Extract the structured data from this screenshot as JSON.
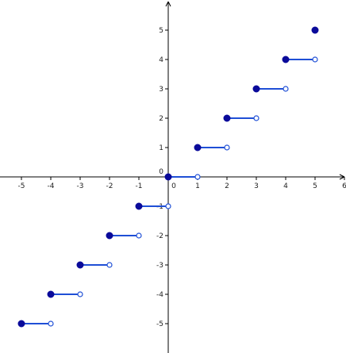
{
  "chart_data": {
    "type": "step",
    "title": "",
    "xlabel": "",
    "ylabel": "",
    "xlim": [
      -5.5,
      6
    ],
    "ylim": [
      -5.9,
      5.9
    ],
    "grid": false,
    "x_ticks": [
      -5,
      -4,
      -3,
      -2,
      -1,
      1,
      2,
      3,
      4,
      5,
      6
    ],
    "y_ticks": [
      -5,
      -4,
      -3,
      -2,
      -1,
      1,
      2,
      3,
      4,
      5
    ],
    "x_tick_labels": [
      "-5",
      "-4",
      "-3",
      "-2",
      "-1",
      "1",
      "2",
      "3",
      "4",
      "5",
      "6"
    ],
    "y_tick_labels": [
      "-5",
      "-4",
      "-3",
      "-2",
      "-1",
      "1",
      "2",
      "3",
      "4",
      "5"
    ],
    "origin_label_x": "0",
    "origin_label_y": "0",
    "segments": [
      {
        "x_start": -5,
        "x_end": -4,
        "y": -5,
        "start_closed": true,
        "end_closed": false
      },
      {
        "x_start": -4,
        "x_end": -3,
        "y": -4,
        "start_closed": true,
        "end_closed": false
      },
      {
        "x_start": -3,
        "x_end": -2,
        "y": -3,
        "start_closed": true,
        "end_closed": false
      },
      {
        "x_start": -2,
        "x_end": -1,
        "y": -2,
        "start_closed": true,
        "end_closed": false
      },
      {
        "x_start": -1,
        "x_end": 0,
        "y": -1,
        "start_closed": true,
        "end_closed": false
      },
      {
        "x_start": 0,
        "x_end": 1,
        "y": 0,
        "start_closed": true,
        "end_closed": false
      },
      {
        "x_start": 1,
        "x_end": 2,
        "y": 1,
        "start_closed": true,
        "end_closed": false
      },
      {
        "x_start": 2,
        "x_end": 3,
        "y": 2,
        "start_closed": true,
        "end_closed": false
      },
      {
        "x_start": 3,
        "x_end": 4,
        "y": 3,
        "start_closed": true,
        "end_closed": false
      },
      {
        "x_start": 4,
        "x_end": 5,
        "y": 4,
        "start_closed": true,
        "end_closed": false
      }
    ],
    "isolated_points": [
      {
        "x": 5,
        "y": 5,
        "closed": true
      }
    ],
    "colors": {
      "segment": "#1f4fd6",
      "filled_point": "#0a0a9a",
      "open_point_fill": "#ffffff",
      "axis": "#000000"
    }
  }
}
